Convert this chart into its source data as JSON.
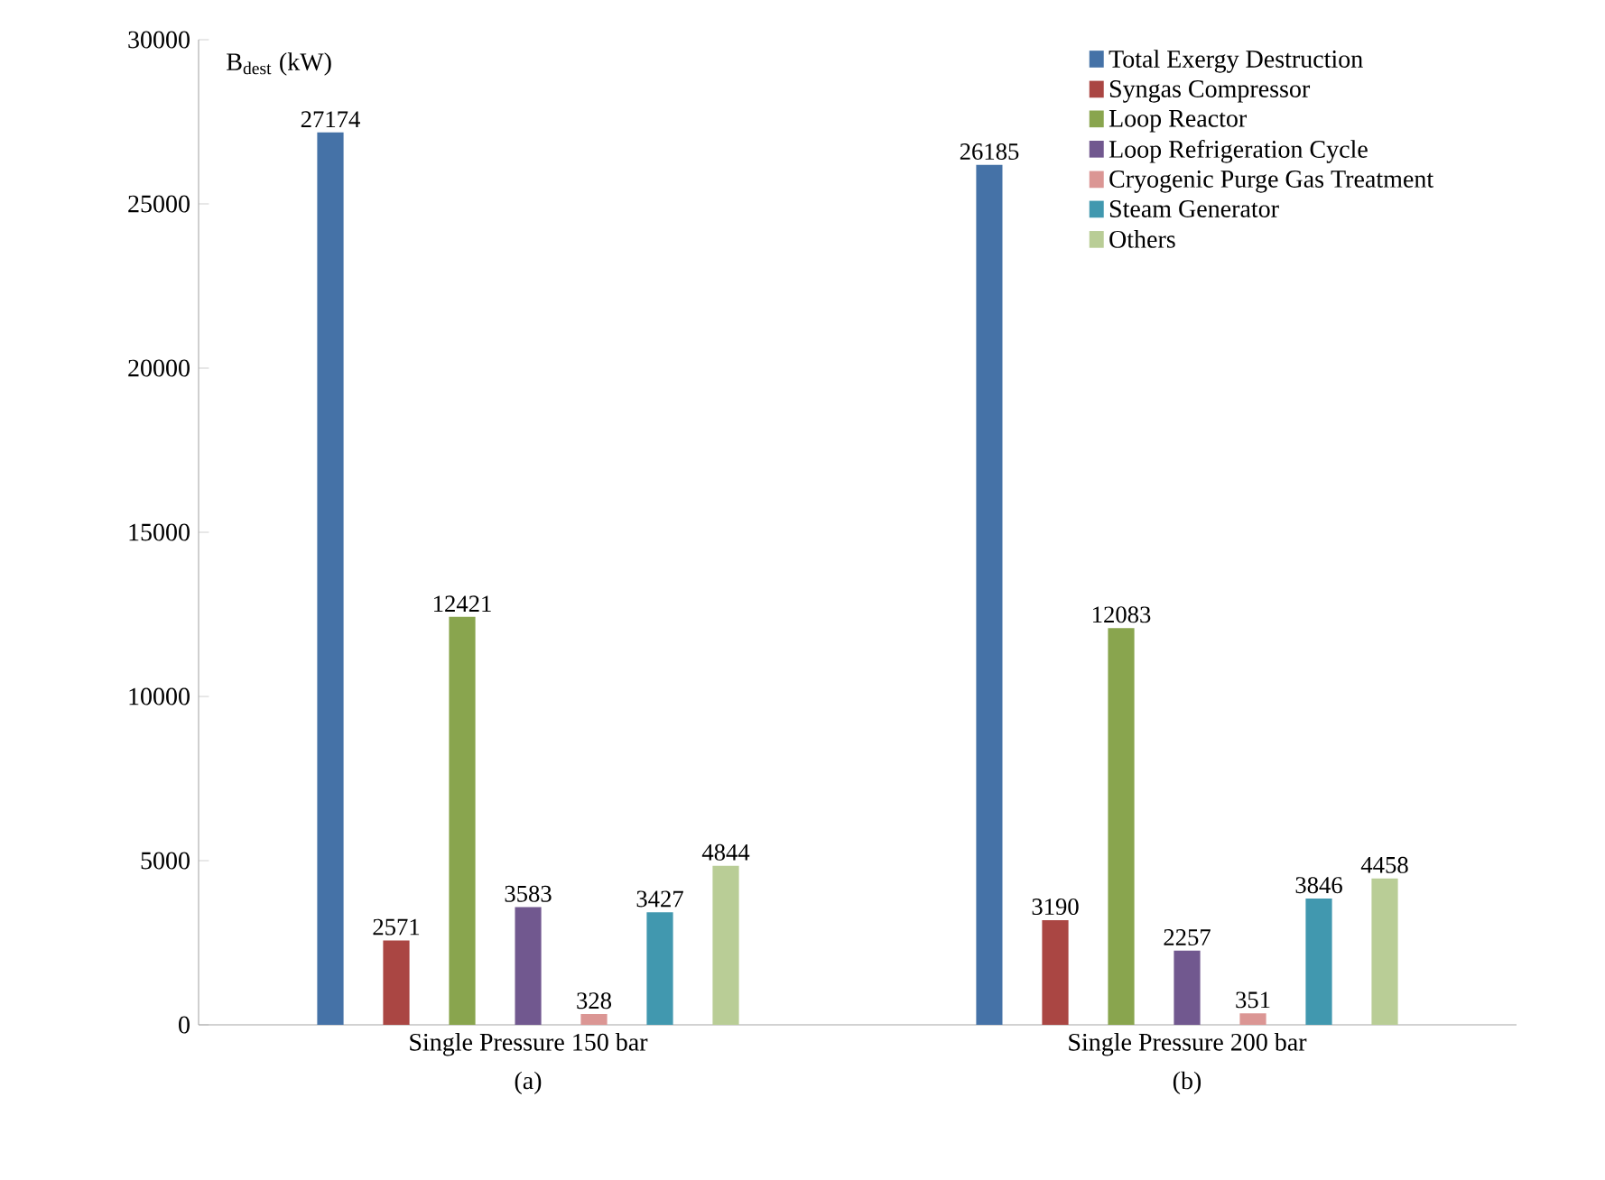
{
  "chart_data": {
    "type": "bar",
    "ylabel": "B$_{dest}$ (kW)",
    "categories": [
      "Single Pressure 150 bar",
      "Single Pressure 200 bar"
    ],
    "annotations": [
      "(a)",
      "(b)"
    ],
    "series": [
      {
        "name": "Total Exergy Destruction",
        "color": "#4572a7",
        "values": [
          27174,
          26185
        ]
      },
      {
        "name": "Syngas Compressor",
        "color": "#aa4643",
        "values": [
          2571,
          3190
        ]
      },
      {
        "name": "Loop Reactor",
        "color": "#89a54e",
        "values": [
          12421,
          12083
        ]
      },
      {
        "name": "Loop Refrigeration Cycle",
        "color": "#71588f",
        "values": [
          3583,
          2257
        ]
      },
      {
        "name": "Cryogenic Purge Gas Treatment",
        "color": "#db9694",
        "values": [
          328,
          351
        ]
      },
      {
        "name": "Steam Generator",
        "color": "#4198af",
        "values": [
          3427,
          3846
        ]
      },
      {
        "name": "Others",
        "color": "#b9cd96",
        "values": [
          4844,
          4458
        ]
      }
    ],
    "ylim": [
      0,
      30000
    ],
    "yticks": [
      0,
      5000,
      10000,
      15000,
      20000,
      25000,
      30000
    ],
    "data_labels": true,
    "legend": "top right",
    "grid": false
  }
}
